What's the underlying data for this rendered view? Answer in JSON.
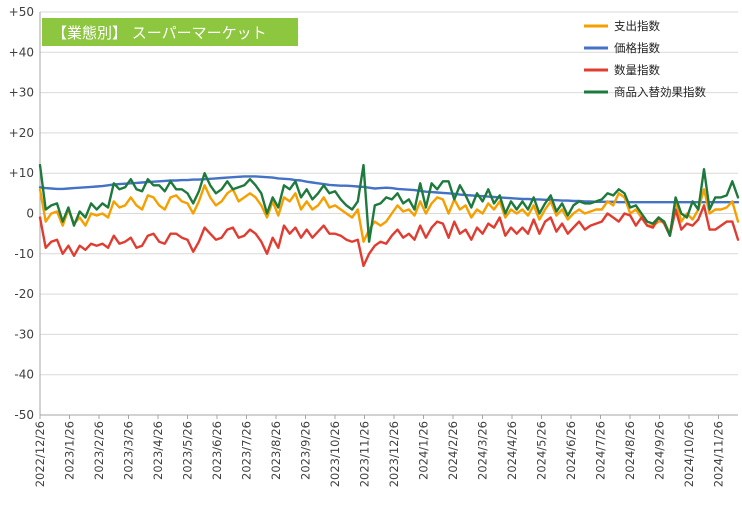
{
  "chart_data": {
    "type": "line",
    "title": "【業態別】 スーパーマーケット",
    "ylim": [
      -50,
      50
    ],
    "ytick_step": 10,
    "ytick_labels": [
      "-50",
      "-40",
      "-30",
      "-20",
      "-10",
      "0",
      "+10",
      "+20",
      "+30",
      "+40",
      "+50"
    ],
    "x_tick_labels": [
      "2022/12/26",
      "2023/1/26",
      "2023/2/26",
      "2023/3/26",
      "2023/4/26",
      "2023/5/26",
      "2023/6/26",
      "2023/7/26",
      "2023/8/26",
      "2023/9/26",
      "2023/10/26",
      "2023/11/26",
      "2023/12/26",
      "2024/1/26",
      "2024/2/26",
      "2024/3/26",
      "2024/4/26",
      "2024/5/26",
      "2024/6/26",
      "2024/7/26",
      "2024/8/26",
      "2024/9/26",
      "2024/10/26",
      "2024/11/26"
    ],
    "grid": true,
    "legend_position": "top-right",
    "series": [
      {
        "name": "支出指数",
        "color": "#F5A000",
        "values": [
          6,
          -2,
          0,
          0.5,
          -3,
          1,
          -2.5,
          -1,
          -3,
          0,
          -0.5,
          0,
          -1,
          3,
          1.5,
          2,
          4,
          2,
          1,
          4.5,
          4,
          2,
          1,
          4,
          4.5,
          3,
          2.5,
          0,
          3,
          7,
          4,
          2,
          3,
          5,
          6,
          3,
          4,
          5,
          4,
          2,
          -1,
          3,
          -0.5,
          4,
          3,
          5,
          1,
          3,
          1,
          2,
          4,
          1.5,
          2,
          1,
          0,
          -1,
          1,
          -7,
          -4,
          -2,
          -3,
          -2,
          0,
          2,
          0.5,
          1,
          -0.5,
          3,
          0,
          2.5,
          4,
          3.5,
          0,
          3.5,
          1,
          2,
          -1,
          1,
          0,
          2.5,
          1,
          3,
          -1,
          1,
          0,
          1,
          -0.5,
          2,
          -1.5,
          1,
          3,
          -0.5,
          1,
          -1.5,
          0,
          1,
          0,
          0.5,
          1,
          1,
          3,
          2,
          5,
          4,
          0,
          1,
          -1,
          -3,
          -3,
          -2,
          -2,
          -5,
          3,
          -2,
          0,
          -1.5,
          1,
          6,
          0,
          1,
          1,
          1.5,
          3,
          -2
        ]
      },
      {
        "name": "価格指数",
        "color": "#4472C4",
        "values": [
          6.5,
          6.3,
          6.2,
          6.1,
          6.1,
          6.2,
          6.3,
          6.4,
          6.5,
          6.6,
          6.7,
          6.8,
          7,
          7.2,
          7.3,
          7.4,
          7.5,
          7.6,
          7.7,
          7.8,
          7.9,
          8,
          8.1,
          8.2,
          8.2,
          8.3,
          8.3,
          8.4,
          8.4,
          8.5,
          8.6,
          8.7,
          8.8,
          8.9,
          9,
          9.1,
          9.2,
          9.2,
          9.2,
          9.1,
          9,
          8.9,
          8.7,
          8.6,
          8.5,
          8.3,
          8.2,
          7.9,
          7.7,
          7.5,
          7.3,
          7.1,
          7,
          6.9,
          6.9,
          6.8,
          6.7,
          6.6,
          6.4,
          6.2,
          6.3,
          6.4,
          6.3,
          6.1,
          6,
          5.9,
          5.8,
          5.6,
          5.4,
          5.3,
          5.2,
          5.1,
          5,
          4.9,
          4.7,
          4.6,
          4.5,
          4.4,
          4.3,
          4.2,
          4.1,
          4,
          3.9,
          3.8,
          3.7,
          3.6,
          3.6,
          3.5,
          3.5,
          3.4,
          3.4,
          3.3,
          3.2,
          3.2,
          3.1,
          3.1,
          3,
          3,
          2.9,
          2.9,
          2.9,
          2.9,
          2.8,
          2.8,
          2.8,
          2.8,
          2.8,
          2.8,
          2.8,
          2.8,
          2.8,
          2.8,
          2.8,
          2.8,
          2.8,
          2.8,
          2.8,
          2.8,
          2.8,
          2.8,
          2.8,
          2.8,
          2.8,
          2.8
        ]
      },
      {
        "name": "数量指数",
        "color": "#E03C31",
        "values": [
          -1,
          -8.5,
          -7,
          -6.5,
          -10,
          -8,
          -10.5,
          -8,
          -9,
          -7.5,
          -8,
          -7.5,
          -8.5,
          -5.5,
          -7.5,
          -7,
          -6,
          -8.5,
          -8,
          -5.5,
          -5,
          -7,
          -7.5,
          -5,
          -5,
          -6,
          -6.5,
          -9.5,
          -7,
          -3.5,
          -5,
          -6.5,
          -6,
          -4,
          -3.5,
          -6,
          -5.5,
          -4,
          -5,
          -7,
          -10,
          -6,
          -8.5,
          -3,
          -5,
          -3.5,
          -6,
          -4,
          -6,
          -4.5,
          -3,
          -5,
          -5,
          -5.5,
          -6.5,
          -7,
          -6.5,
          -13,
          -10,
          -8,
          -7,
          -7.5,
          -5.5,
          -4,
          -6,
          -5,
          -6.5,
          -3,
          -6,
          -3.5,
          -2,
          -2.5,
          -6,
          -2,
          -5,
          -4,
          -6.5,
          -3.5,
          -5,
          -2.5,
          -3.5,
          -1,
          -5.5,
          -3.5,
          -5,
          -3.5,
          -5,
          -1.5,
          -5,
          -2,
          -1,
          -4.5,
          -2.5,
          -5,
          -3.5,
          -2,
          -4,
          -3,
          -2.5,
          -2,
          0,
          -1,
          -2,
          0,
          -0.5,
          -3,
          -1,
          -3,
          -3.5,
          -1,
          -2.5,
          -5.5,
          1,
          -4,
          -2.5,
          -3,
          -1.5,
          2,
          -4,
          -4,
          -3,
          -2,
          -2,
          -6.5
        ]
      },
      {
        "name": "商品入替効果指数",
        "color": "#1E7A3C",
        "values": [
          12,
          1,
          2,
          2.5,
          -2,
          1.5,
          -3,
          0.5,
          -1,
          2.5,
          1,
          2.5,
          1.5,
          7.5,
          6,
          6.5,
          8.5,
          6,
          5.5,
          8.5,
          7,
          7,
          5.5,
          8,
          6,
          6,
          5,
          2.5,
          5.5,
          10,
          7,
          5,
          6,
          8,
          6,
          6.5,
          7,
          8.5,
          7,
          5,
          0,
          4,
          1.5,
          7,
          6,
          8,
          4,
          6,
          3.5,
          5,
          7,
          5,
          5.5,
          3.5,
          2,
          1,
          3,
          12,
          -7,
          2,
          2.5,
          4,
          3.5,
          5,
          2.5,
          3.5,
          1,
          7.5,
          1.5,
          7.5,
          6,
          8,
          8,
          3.5,
          7,
          4.5,
          1.5,
          5,
          3,
          6,
          2.5,
          4.5,
          0,
          3,
          1,
          3,
          1,
          4,
          0,
          2.5,
          4.5,
          0.5,
          2.5,
          -0.5,
          2,
          3,
          2.5,
          2.5,
          3,
          3.5,
          5,
          4.5,
          6,
          5,
          1.5,
          2,
          0,
          -2,
          -2.5,
          -1,
          -2,
          -5.5,
          4,
          0,
          -1,
          3,
          1,
          11,
          1,
          4,
          4,
          4.5,
          8,
          4
        ]
      }
    ]
  }
}
